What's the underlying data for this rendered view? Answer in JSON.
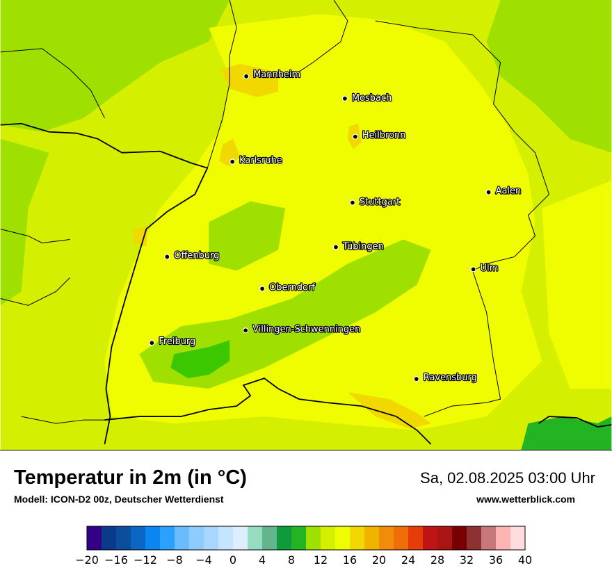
{
  "map": {
    "cities": [
      {
        "name": "Mannheim"
      },
      {
        "name": "Mosbach"
      },
      {
        "name": "Heilbronn"
      },
      {
        "name": "Karlsruhe"
      },
      {
        "name": "Aalen"
      },
      {
        "name": "Stuttgart"
      },
      {
        "name": "Tübingen"
      },
      {
        "name": "Offenburg"
      },
      {
        "name": "Ulm"
      },
      {
        "name": "Oberndorf"
      },
      {
        "name": "Villingen-Schwenningen"
      },
      {
        "name": "Freiburg"
      },
      {
        "name": "Ravensburg"
      }
    ],
    "colors": {
      "temp_12_14": "#9fe000",
      "temp_14_16": "#d4f000",
      "temp_16_18": "#f0fc00",
      "temp_18_20": "#f0d800",
      "temp_10_12": "#3cc800",
      "temp_8_10": "#22b422",
      "border": "#000000"
    }
  },
  "header": {
    "title": "Temperatur in 2m (in °C)",
    "subtitle": "Modell: ICON-D2 00z, Deutscher Wetterdienst",
    "datetime": "Sa, 02.08.2025 03:00 Uhr",
    "website": "www.wetterblick.com"
  },
  "legend": {
    "colors": [
      "#330088",
      "#0a3a8a",
      "#0c4e9e",
      "#0a66c2",
      "#0a86ee",
      "#2aa0ff",
      "#6bbcff",
      "#8ecbff",
      "#a8d6ff",
      "#c4e4ff",
      "#dceeff",
      "#96dcc0",
      "#64b48c",
      "#0f9b3c",
      "#22b422",
      "#9fe000",
      "#d4f000",
      "#f0fc00",
      "#f0d800",
      "#f0b400",
      "#f08c0a",
      "#f06e0a",
      "#e63c0a",
      "#be1414",
      "#aa1414",
      "#780000",
      "#8c3232",
      "#c87878",
      "#ffb4b4",
      "#ffdcdc"
    ],
    "ticks": [
      "−20",
      "−16",
      "−12",
      "−8",
      "−4",
      "0",
      "4",
      "8",
      "12",
      "16",
      "20",
      "24",
      "28",
      "32",
      "36",
      "40"
    ]
  }
}
